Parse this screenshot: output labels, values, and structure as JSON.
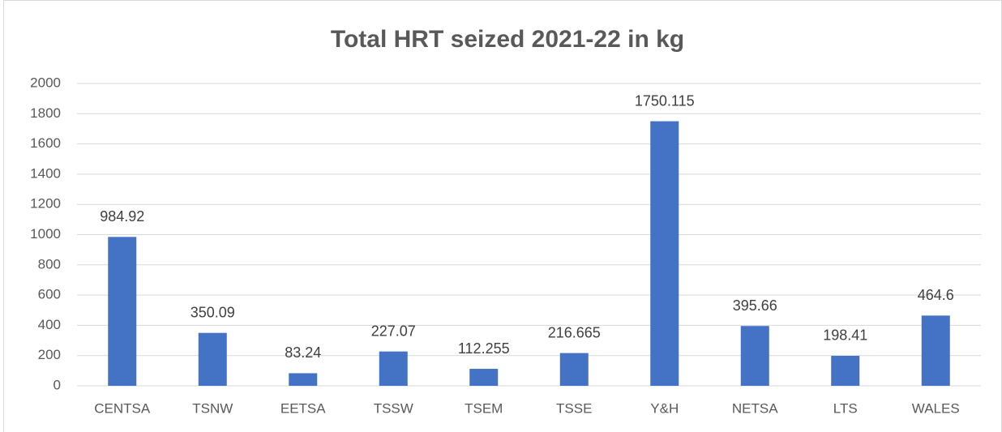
{
  "chart_data": {
    "type": "bar",
    "title": "Total HRT seized 2021-22 in kg",
    "categories": [
      "CENTSA",
      "TSNW",
      "EETSA",
      "TSSW",
      "TSEM",
      "TSSE",
      "Y&H",
      "NETSA",
      "LTS",
      "WALES"
    ],
    "values": [
      984.92,
      350.09,
      83.24,
      227.07,
      112.255,
      216.665,
      1750.115,
      395.66,
      198.41,
      464.6
    ],
    "color": "#4472c4",
    "ylim": [
      0,
      2000
    ],
    "yticks": [
      0,
      200,
      400,
      600,
      800,
      1000,
      1200,
      1400,
      1600,
      1800,
      2000
    ],
    "grid": true
  }
}
